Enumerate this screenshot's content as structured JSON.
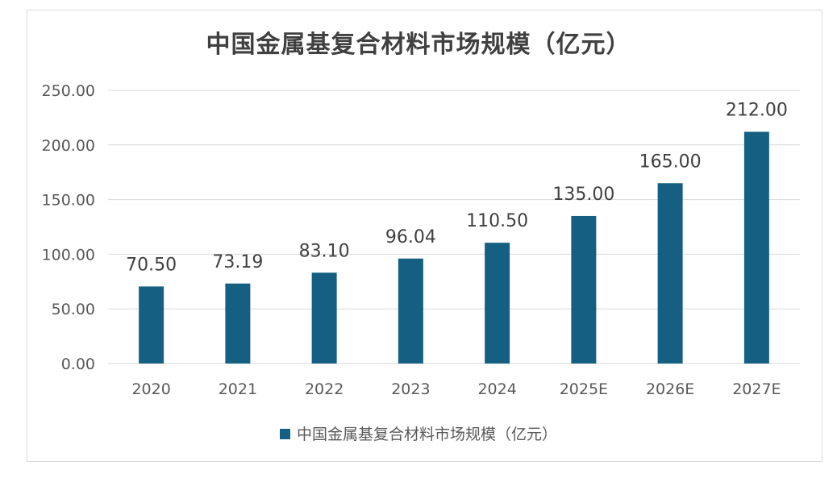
{
  "chart_data": {
    "type": "bar",
    "title": "中国金属基复合材料市场规模（亿元）",
    "categories": [
      "2020",
      "2021",
      "2022",
      "2023",
      "2024",
      "2025E",
      "2026E",
      "2027E"
    ],
    "series": [
      {
        "name": "中国金属基复合材料市场规模（亿元）",
        "values": [
          70.5,
          73.19,
          83.1,
          96.04,
          110.5,
          135.0,
          165.0,
          212.0
        ],
        "color": "#156082"
      }
    ],
    "data_labels": [
      "70.50",
      "73.19",
      "83.10",
      "96.04",
      "110.50",
      "135.00",
      "165.00",
      "212.00"
    ],
    "y_ticks": [
      "0.00",
      "50.00",
      "100.00",
      "150.00",
      "200.00",
      "250.00"
    ],
    "ylim": [
      0,
      250
    ],
    "grid": true,
    "legend_position": "bottom",
    "xlabel": "",
    "ylabel": ""
  }
}
